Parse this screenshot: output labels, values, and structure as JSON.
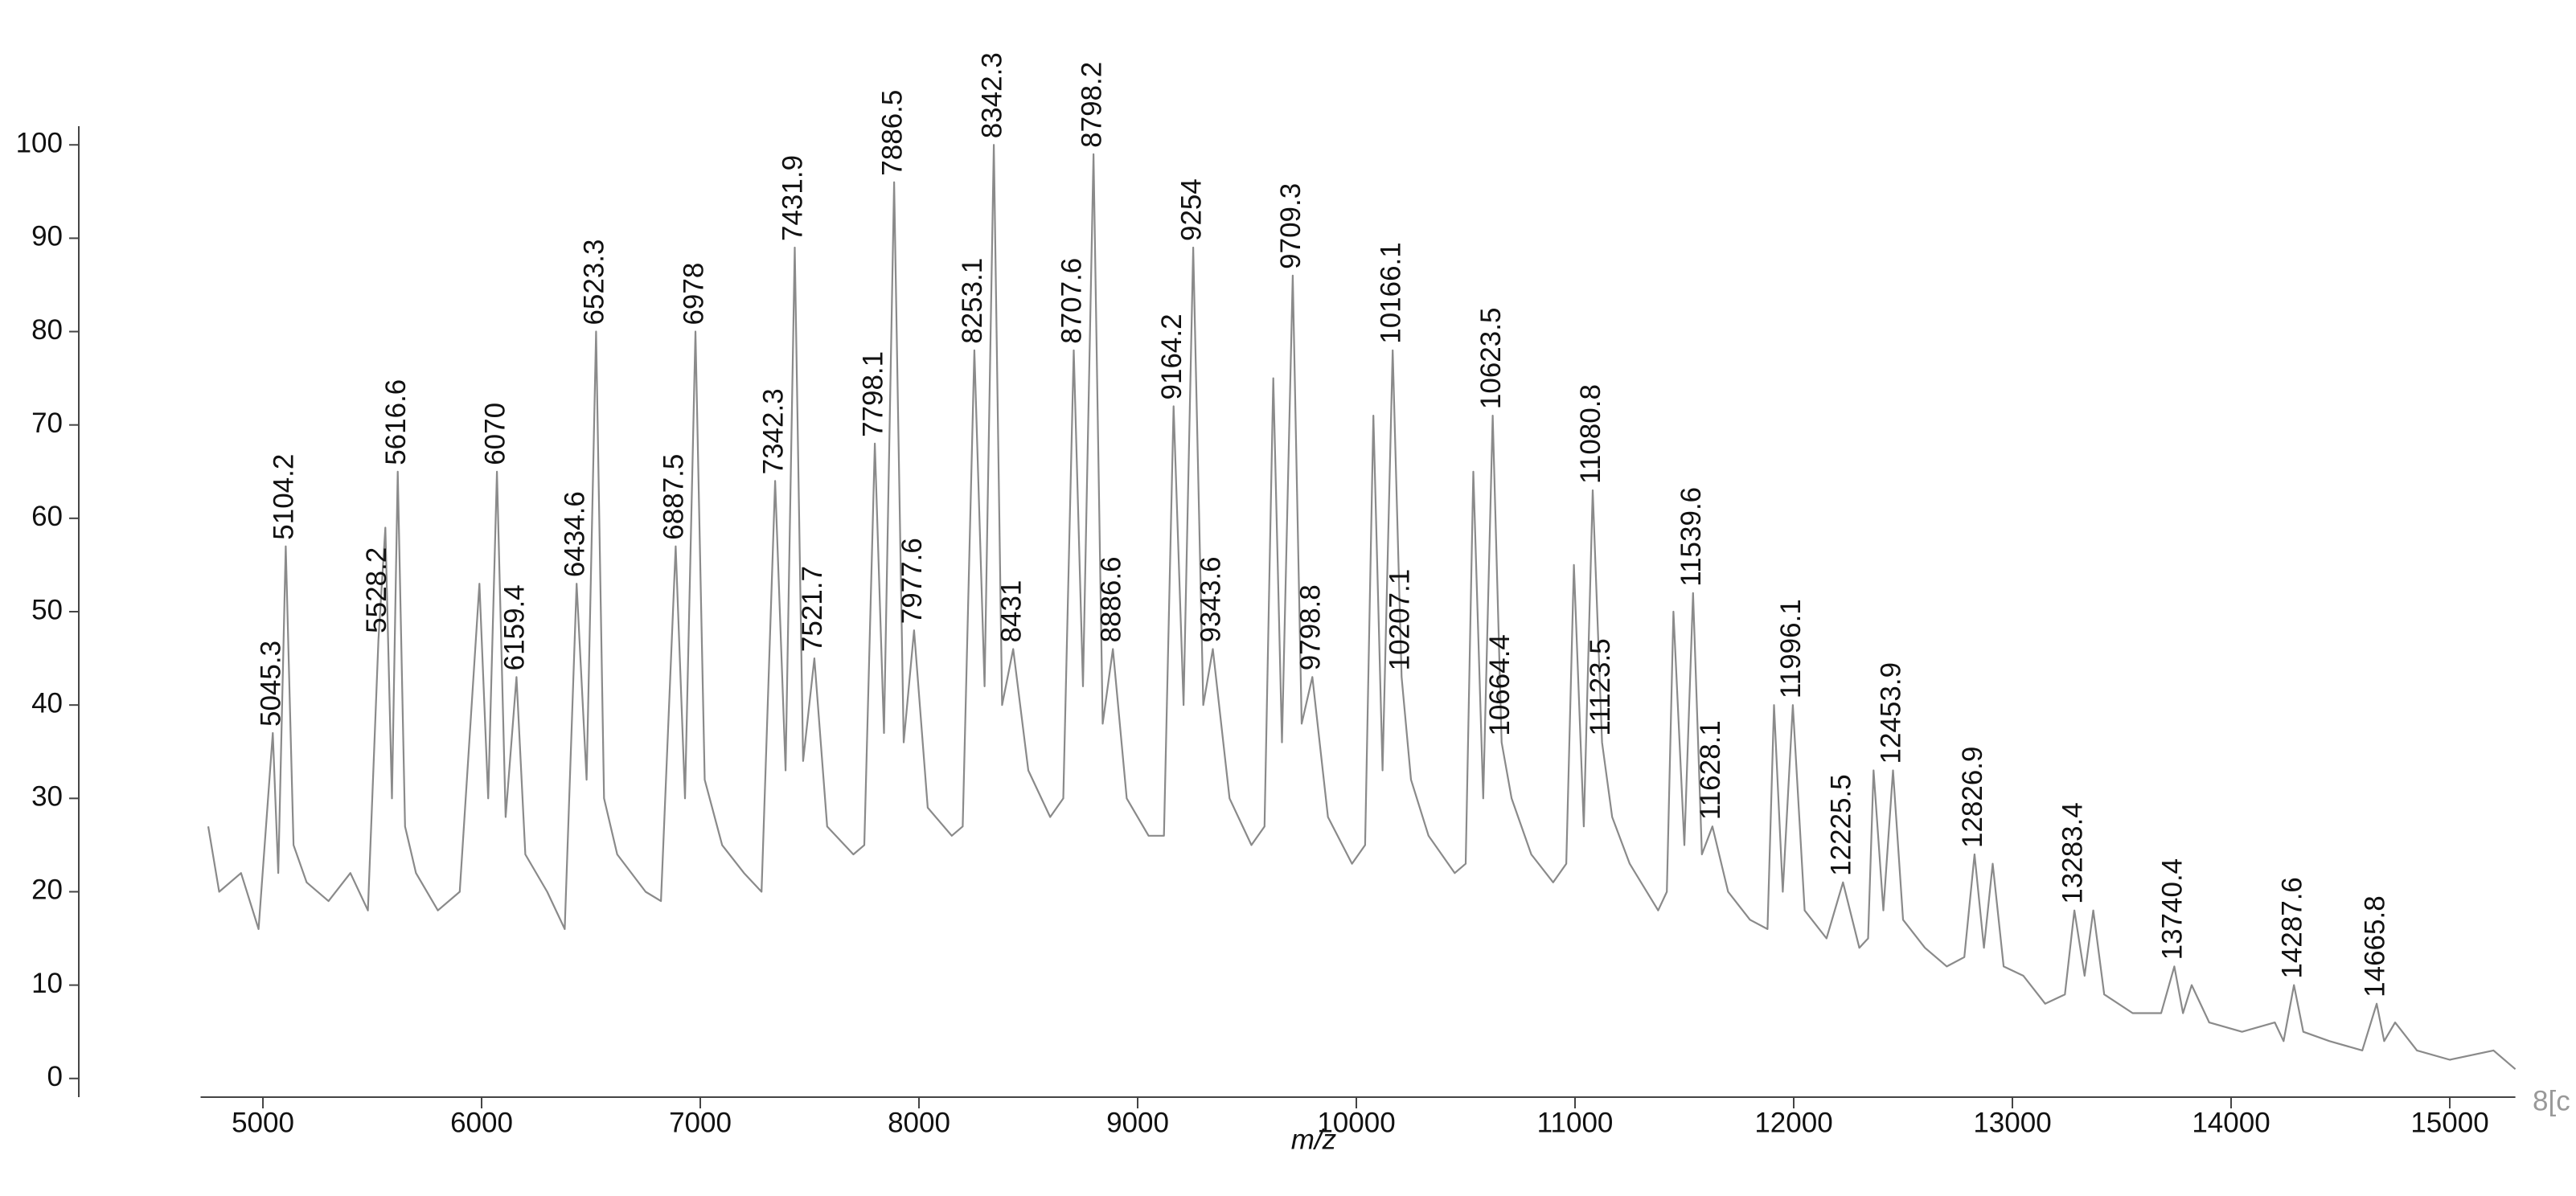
{
  "chart_data": {
    "type": "line",
    "xlabel": "m/z",
    "xlabel_extra": "8[c",
    "color": "#8a8a8a",
    "xlim": [
      4715,
      15300
    ],
    "ylim": [
      -2,
      102
    ],
    "xticks": [
      5000,
      6000,
      7000,
      8000,
      9000,
      10000,
      11000,
      12000,
      13000,
      14000,
      15000
    ],
    "yticks": [
      0,
      10,
      20,
      30,
      40,
      50,
      60,
      70,
      80,
      90,
      100
    ],
    "x": [
      4750,
      4800,
      4900,
      4980,
      5045.3,
      5070,
      5104.2,
      5140,
      5200,
      5300,
      5400,
      5480,
      5528.2,
      5560,
      5590,
      5616.6,
      5650,
      5700,
      5800,
      5900,
      5990,
      6030,
      6070.0,
      6110,
      6159.4,
      6200,
      6300,
      6380,
      6434.6,
      6480,
      6523.3,
      6560,
      6620,
      6750,
      6820,
      6887.5,
      6930,
      6978.0,
      7020,
      7100,
      7200,
      7280,
      7342.3,
      7390,
      7431.9,
      7470,
      7521.7,
      7580,
      7700,
      7750,
      7798.1,
      7840,
      7886.5,
      7930,
      7977.6,
      8040,
      8150,
      8200,
      8253.1,
      8300,
      8342.3,
      8380,
      8431.0,
      8500,
      8600,
      8660,
      8707.6,
      8750,
      8798.2,
      8840,
      8886.6,
      8950,
      9050,
      9120,
      9164.2,
      9210,
      9254.0,
      9300,
      9343.6,
      9420,
      9520,
      9580,
      9620,
      9660,
      9709.3,
      9750,
      9798.8,
      9870,
      9980,
      10040,
      10078,
      10120,
      10166.1,
      10207.1,
      10250,
      10330,
      10450,
      10500,
      10535,
      10580,
      10623.5,
      10664.4,
      10710,
      10800,
      10900,
      10960,
      10995,
      11040,
      11080.8,
      11123.5,
      11170,
      11250,
      11380,
      11420,
      11450,
      11500,
      11539.6,
      11580,
      11628.1,
      11700,
      11800,
      11880,
      11910,
      11950,
      11996.1,
      12050,
      12150,
      12225.5,
      12300,
      12340,
      12365,
      12410,
      12453.9,
      12500,
      12600,
      12700,
      12780,
      12826.9,
      12870,
      12910,
      12960,
      13050,
      13150,
      13240,
      13283.4,
      13330,
      13370,
      13420,
      13550,
      13680,
      13740.4,
      13780,
      13820,
      13900,
      14050,
      14200,
      14240,
      14287.6,
      14330,
      14450,
      14600,
      14665.8,
      14700,
      14750,
      14850,
      15000,
      15200,
      15300
    ],
    "values": [
      27,
      20,
      22,
      16,
      37,
      22,
      57,
      25,
      21,
      19,
      22,
      18,
      47,
      59,
      30,
      65,
      27,
      22,
      18,
      20,
      53,
      30,
      65,
      28,
      43,
      24,
      20,
      16,
      53,
      32,
      80,
      30,
      24,
      20,
      19,
      57,
      30,
      80,
      32,
      25,
      22,
      20,
      64,
      33,
      89,
      34,
      45,
      27,
      24,
      25,
      68,
      37,
      96,
      36,
      48,
      29,
      26,
      27,
      78,
      42,
      100,
      40,
      46,
      33,
      28,
      30,
      78,
      42,
      99,
      38,
      46,
      30,
      26,
      26,
      72,
      40,
      89,
      40,
      46,
      30,
      25,
      27,
      75,
      36,
      86,
      38,
      43,
      28,
      23,
      25,
      71,
      33,
      78,
      43,
      32,
      26,
      22,
      23,
      65,
      30,
      71,
      36,
      30,
      24,
      21,
      23,
      55,
      27,
      63,
      36,
      28,
      23,
      18,
      20,
      50,
      25,
      52,
      24,
      27,
      20,
      17,
      16,
      40,
      20,
      40,
      18,
      15,
      21,
      14,
      15,
      33,
      18,
      33,
      17,
      14,
      12,
      13,
      24,
      14,
      23,
      12,
      11,
      8,
      9,
      18,
      11,
      18,
      9,
      7,
      7,
      12,
      7,
      10,
      6,
      5,
      6,
      4,
      10,
      5,
      4,
      3,
      8,
      4,
      6,
      3,
      2,
      3,
      1
    ],
    "peak_labels": [
      5045.3,
      5104.2,
      5528.2,
      5616.6,
      6070.0,
      6159.4,
      6434.6,
      6523.3,
      6887.5,
      6978.0,
      7342.3,
      7431.9,
      7521.7,
      7798.1,
      7886.5,
      7977.6,
      8253.1,
      8342.3,
      8431.0,
      8707.6,
      8798.2,
      8886.6,
      9164.2,
      9254.0,
      9343.6,
      9709.3,
      9798.8,
      10166.1,
      10207.1,
      10623.5,
      10664.4,
      11080.8,
      11123.5,
      11539.6,
      11628.1,
      11996.1,
      12225.5,
      12453.9,
      12826.9,
      13283.4,
      13740.4,
      14287.6,
      14665.8
    ]
  }
}
